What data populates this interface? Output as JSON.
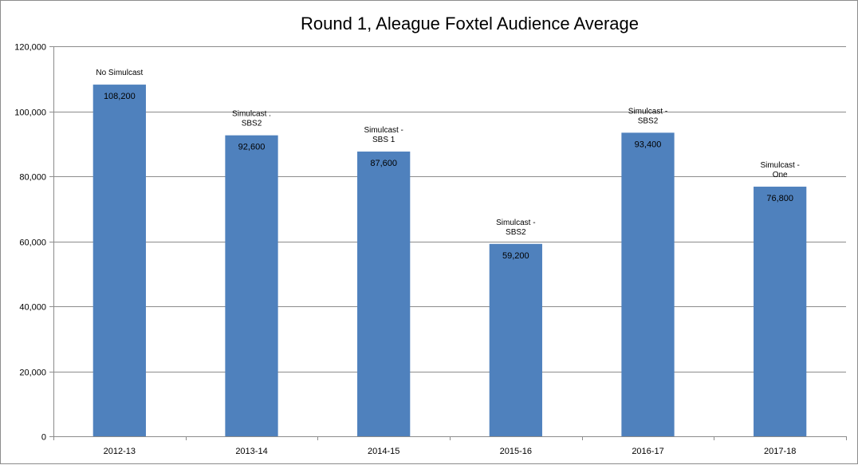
{
  "chart_data": {
    "type": "bar",
    "title": "Round 1, Aleague Foxtel Audience Average",
    "xlabel": "",
    "ylabel": "",
    "categories": [
      "2012-13",
      "2013-14",
      "2014-15",
      "2015-16",
      "2016-17",
      "2017-18"
    ],
    "values": [
      108200,
      92600,
      87600,
      59200,
      93400,
      76800
    ],
    "value_labels": [
      "108,200",
      "92,600",
      "87,600",
      "59,200",
      "93,400",
      "76,800"
    ],
    "annotations": [
      [
        "No Simulcast"
      ],
      [
        "Simulcast .",
        "SBS2"
      ],
      [
        "Simulcast -",
        "SBS 1"
      ],
      [
        "Simulcast -",
        "SBS2"
      ],
      [
        "Simulcast -",
        "SBS2"
      ],
      [
        "Simulcast -",
        "One"
      ]
    ],
    "ylim": [
      0,
      120000
    ],
    "yticks": [
      0,
      20000,
      40000,
      60000,
      80000,
      100000,
      120000
    ],
    "ytick_labels": [
      "0",
      "20,000",
      "40,000",
      "60,000",
      "80,000",
      "100,000",
      "120,000"
    ],
    "grid": true,
    "legend": "none",
    "colors": {
      "bar": "#4f81bd",
      "grid": "#8c8c8c",
      "axis": "#8c8c8c"
    }
  }
}
